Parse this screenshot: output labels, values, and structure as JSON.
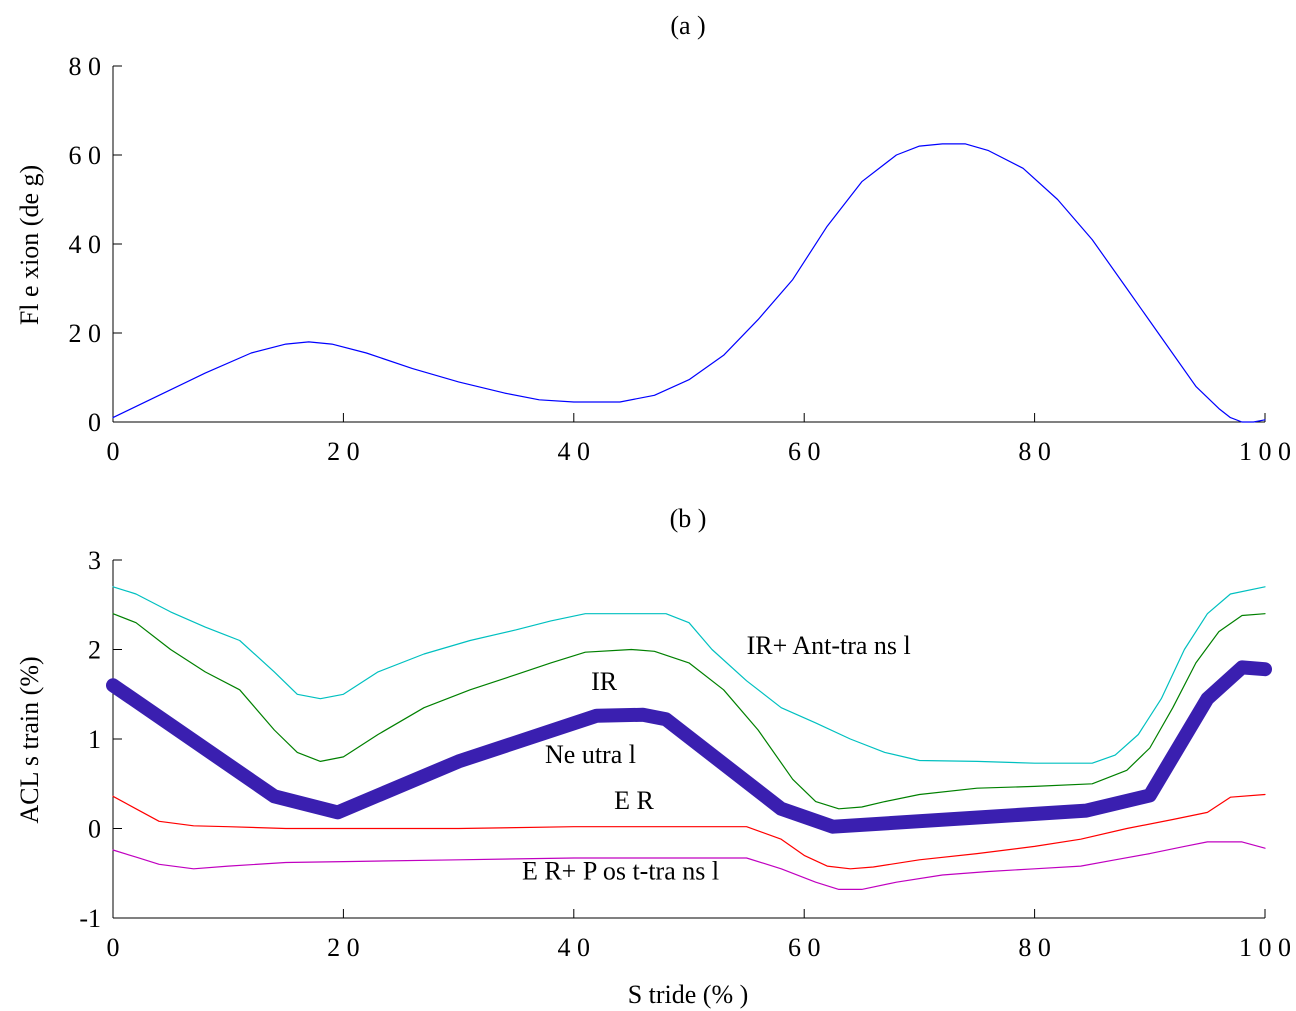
{
  "chart_data": [
    {
      "type": "line",
      "title": "(a )",
      "xlabel": "",
      "ylabel": "Fl e xion  (de g)",
      "xlim": [
        0,
        100
      ],
      "ylim": [
        0,
        80
      ],
      "xticks": [
        0,
        20,
        40,
        60,
        80,
        100
      ],
      "yticks": [
        0,
        20,
        40,
        60,
        80
      ],
      "xtick_labels": [
        "0",
        "2 0",
        "4 0",
        "6 0",
        "8 0",
        "1 0 0"
      ],
      "ytick_labels": [
        "0",
        "2 0",
        "4 0",
        "6 0",
        "8 0"
      ],
      "grid": false,
      "series": [
        {
          "color": "#0000ff",
          "x": [
            0,
            4,
            8,
            12,
            15,
            17,
            19,
            22,
            26,
            30,
            34,
            37,
            40,
            44,
            47,
            50,
            53,
            56,
            59,
            62,
            65,
            68,
            70,
            72,
            74,
            76,
            79,
            82,
            85,
            88,
            91,
            94,
            96,
            97,
            98,
            99,
            100
          ],
          "values": [
            1,
            6,
            11,
            15.5,
            17.5,
            18,
            17.5,
            15.5,
            12,
            9,
            6.5,
            5,
            4.5,
            4.5,
            6,
            9.5,
            15,
            23,
            32,
            44,
            54,
            60,
            62,
            62.5,
            62.5,
            61,
            57,
            50,
            41,
            30,
            19,
            8,
            3,
            1,
            0,
            0,
            0.5
          ]
        }
      ]
    },
    {
      "type": "line",
      "title": "(b )",
      "xlabel": "S tride  (% )",
      "ylabel": "ACL s train (%)",
      "xlim": [
        0,
        100
      ],
      "ylim": [
        -1,
        3
      ],
      "xticks": [
        0,
        20,
        40,
        60,
        80,
        100
      ],
      "yticks": [
        -1,
        0,
        1,
        2,
        3
      ],
      "xtick_labels": [
        "0",
        "2 0",
        "4 0",
        "6 0",
        "8 0",
        "1 0 0"
      ],
      "ytick_labels": [
        "-1",
        "0",
        "1",
        "2",
        "3"
      ],
      "grid": false,
      "annotations": [
        {
          "text": "IR+ Ant-tra ns l",
          "x": 55,
          "y": 1.95
        },
        {
          "text": "IR",
          "x": 41.5,
          "y": 1.55
        },
        {
          "text": "Ne utra l",
          "x": 37.5,
          "y": 0.73
        },
        {
          "text": "E R",
          "x": 43.5,
          "y": 0.22
        },
        {
          "text": "E R+ P os t-tra ns l",
          "x": 35.5,
          "y": -0.57
        }
      ],
      "series": [
        {
          "color": "#00c0c0",
          "x": [
            0,
            2,
            5,
            8,
            11,
            14,
            16,
            18,
            20,
            23,
            27,
            31,
            35,
            38,
            41,
            45,
            48,
            50,
            52,
            55,
            58,
            61,
            64,
            67,
            70,
            75,
            80,
            85,
            87,
            89,
            91,
            93,
            95,
            97,
            100
          ],
          "values": [
            2.7,
            2.62,
            2.42,
            2.25,
            2.1,
            1.75,
            1.5,
            1.45,
            1.5,
            1.75,
            1.95,
            2.1,
            2.22,
            2.32,
            2.4,
            2.4,
            2.4,
            2.3,
            2.0,
            1.65,
            1.35,
            1.18,
            1.0,
            0.85,
            0.76,
            0.75,
            0.73,
            0.73,
            0.82,
            1.05,
            1.45,
            2.0,
            2.4,
            2.62,
            2.7
          ]
        },
        {
          "color": "#008000",
          "x": [
            0,
            2,
            5,
            8,
            11,
            14,
            16,
            18,
            20,
            23,
            27,
            31,
            35,
            38,
            41,
            45,
            47,
            50,
            53,
            56,
            59,
            61,
            63,
            65,
            67,
            70,
            75,
            80,
            85,
            88,
            90,
            92,
            94,
            96,
            98,
            100
          ],
          "values": [
            2.4,
            2.3,
            2.0,
            1.75,
            1.55,
            1.1,
            0.85,
            0.75,
            0.8,
            1.05,
            1.35,
            1.55,
            1.72,
            1.85,
            1.97,
            2.0,
            1.98,
            1.85,
            1.55,
            1.1,
            0.55,
            0.3,
            0.22,
            0.24,
            0.3,
            0.38,
            0.45,
            0.47,
            0.5,
            0.65,
            0.9,
            1.35,
            1.85,
            2.2,
            2.38,
            2.4
          ]
        },
        {
          "color": "#ff0000",
          "x": [
            0,
            2,
            4,
            7,
            10,
            15,
            20,
            30,
            40,
            48,
            55,
            58,
            60,
            62,
            64,
            66,
            70,
            75,
            80,
            84,
            88,
            92,
            95,
            97,
            100
          ],
          "values": [
            0.36,
            0.22,
            0.08,
            0.03,
            0.02,
            0.0,
            0.0,
            0.0,
            0.02,
            0.02,
            0.02,
            -0.12,
            -0.3,
            -0.42,
            -0.45,
            -0.43,
            -0.35,
            -0.28,
            -0.2,
            -0.12,
            0.0,
            0.1,
            0.18,
            0.35,
            0.38
          ]
        },
        {
          "color": "#c000c0",
          "x": [
            0,
            2,
            4,
            7,
            10,
            15,
            20,
            30,
            40,
            48,
            55,
            58,
            61,
            63,
            65,
            68,
            72,
            76,
            80,
            84,
            87,
            90,
            93,
            95,
            98,
            100
          ],
          "values": [
            -0.24,
            -0.32,
            -0.4,
            -0.45,
            -0.42,
            -0.38,
            -0.37,
            -0.35,
            -0.33,
            -0.33,
            -0.33,
            -0.45,
            -0.6,
            -0.68,
            -0.68,
            -0.6,
            -0.52,
            -0.48,
            -0.45,
            -0.42,
            -0.35,
            -0.28,
            -0.2,
            -0.15,
            -0.15,
            -0.22
          ]
        },
        {
          "color": "#3a1fb0",
          "thick": true,
          "x": [
            0,
            14,
            19.5,
            30,
            42,
            46,
            48,
            58,
            62.5,
            84.5,
            90,
            95,
            98,
            100
          ],
          "values": [
            1.6,
            0.36,
            0.18,
            0.75,
            1.26,
            1.27,
            1.22,
            0.22,
            0.02,
            0.2,
            0.37,
            1.45,
            1.8,
            1.78
          ]
        }
      ]
    }
  ]
}
